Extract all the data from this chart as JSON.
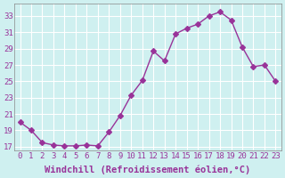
{
  "x": [
    0,
    1,
    2,
    3,
    4,
    5,
    6,
    7,
    8,
    9,
    10,
    11,
    12,
    13,
    14,
    15,
    16,
    17,
    18,
    19,
    20,
    21,
    22,
    23
  ],
  "y": [
    20.0,
    19.0,
    17.5,
    17.2,
    17.1,
    17.1,
    17.2,
    17.1,
    18.8,
    20.8,
    23.3,
    25.1,
    28.7,
    27.5,
    30.8,
    31.5,
    32.0,
    33.0,
    33.5,
    32.5,
    29.2,
    26.8,
    27.0,
    25.0
  ],
  "line_color": "#993399",
  "marker": "D",
  "marker_size": 3,
  "bg_color": "#cff0f0",
  "grid_color": "#ffffff",
  "xlabel": "Windchill (Refroidissement éolien,°C)",
  "ylabel": "",
  "yticks": [
    17,
    19,
    21,
    23,
    25,
    27,
    29,
    31,
    33
  ],
  "ylim": [
    16.5,
    34.5
  ],
  "xlim": [
    -0.5,
    23.5
  ],
  "tick_label_color": "#993399",
  "tick_fontsize": 6.5,
  "xlabel_fontsize": 7.5
}
